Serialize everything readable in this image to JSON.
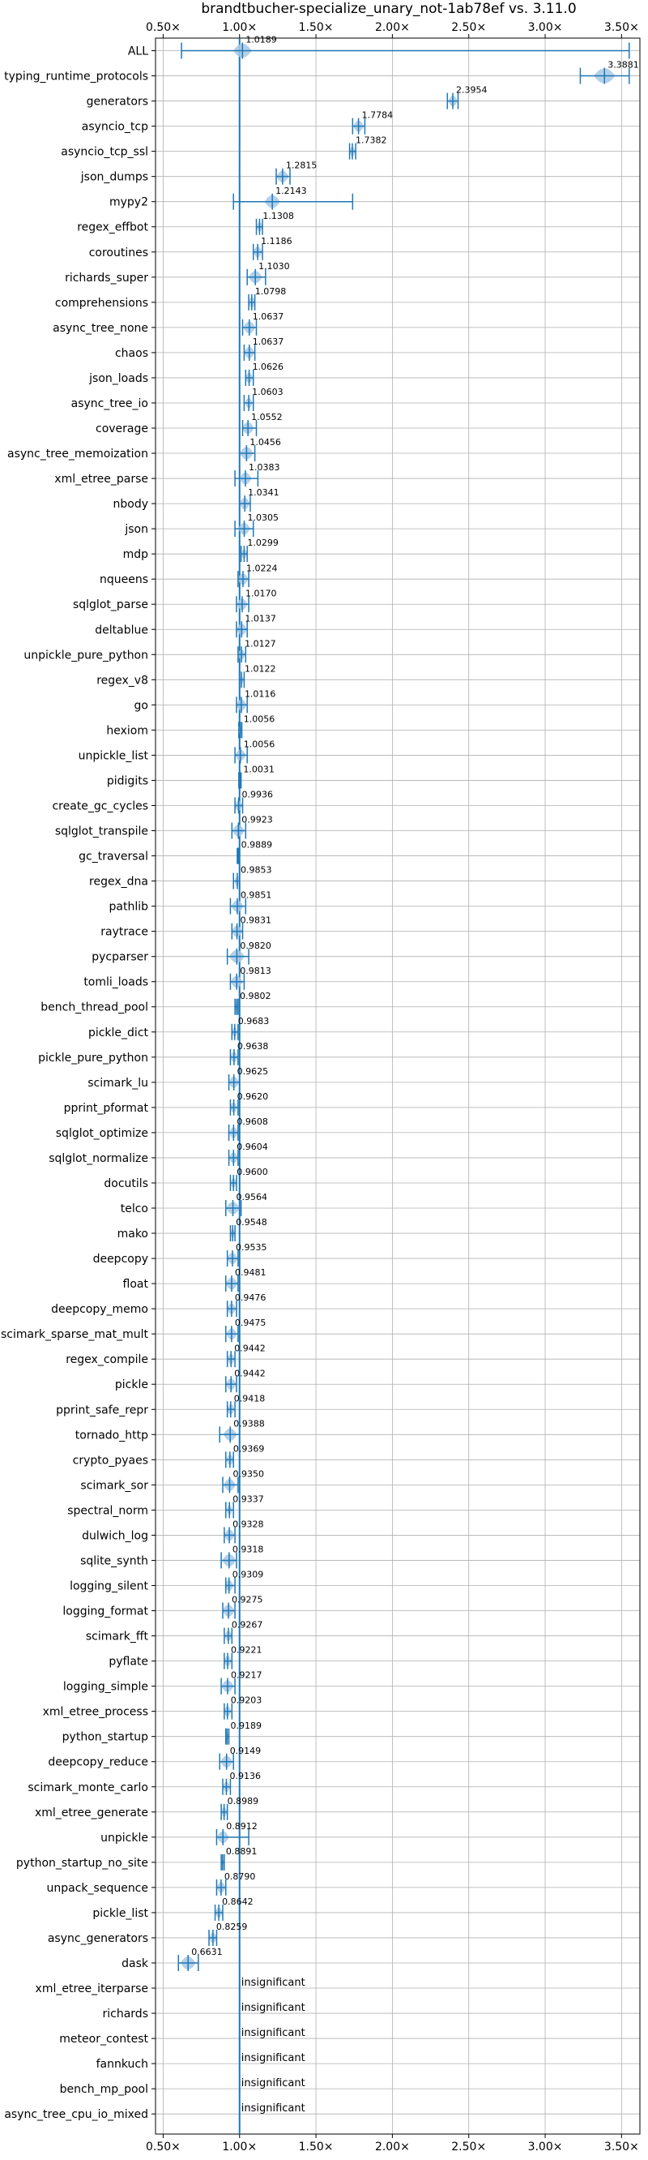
{
  "chart_data": {
    "type": "violin",
    "title": "brandtbucher-specialize_unary_not-1ab78ef vs. 3.11.0",
    "xlabel": "",
    "ylabel": "",
    "xlim": [
      0.45,
      3.62
    ],
    "x_ticks": [
      {
        "value": 0.5,
        "label": "0.50×"
      },
      {
        "value": 1.0,
        "label": "1.00×"
      },
      {
        "value": 1.5,
        "label": "1.50×"
      },
      {
        "value": 2.0,
        "label": "2.00×"
      },
      {
        "value": 2.5,
        "label": "2.50×"
      },
      {
        "value": 3.0,
        "label": "3.00×"
      },
      {
        "value": 3.5,
        "label": "3.50×"
      }
    ],
    "reference_line": 1.0,
    "grid": true,
    "legend": "none",
    "colors": {
      "line": "#1f77b4",
      "fill": "#a6c8e6",
      "grid": "#b0b0b0"
    },
    "benchmarks": [
      {
        "name": "ALL",
        "value": 1.0189,
        "label": "1.0189",
        "min": 0.62,
        "max": 3.55,
        "spread": 0.06
      },
      {
        "name": "typing_runtime_protocols",
        "value": 3.3881,
        "label": "3.3881",
        "min": 3.23,
        "max": 3.55,
        "spread": 0.07
      },
      {
        "name": "generators",
        "value": 2.3954,
        "label": "2.3954",
        "min": 2.36,
        "max": 2.43,
        "spread": 0.03
      },
      {
        "name": "asyncio_tcp",
        "value": 1.7784,
        "label": "1.7784",
        "min": 1.74,
        "max": 1.82,
        "spread": 0.035
      },
      {
        "name": "asyncio_tcp_ssl",
        "value": 1.7382,
        "label": "1.7382",
        "min": 1.72,
        "max": 1.76,
        "spread": 0.02
      },
      {
        "name": "json_dumps",
        "value": 1.2815,
        "label": "1.2815",
        "min": 1.24,
        "max": 1.33,
        "spread": 0.04
      },
      {
        "name": "mypy2",
        "value": 1.2143,
        "label": "1.2143",
        "min": 0.96,
        "max": 1.74,
        "spread": 0.05
      },
      {
        "name": "regex_effbot",
        "value": 1.1308,
        "label": "1.1308",
        "min": 1.11,
        "max": 1.15,
        "spread": 0.02
      },
      {
        "name": "coroutines",
        "value": 1.1186,
        "label": "1.1186",
        "min": 1.09,
        "max": 1.15,
        "spread": 0.03
      },
      {
        "name": "richards_super",
        "value": 1.103,
        "label": "1.1030",
        "min": 1.05,
        "max": 1.17,
        "spread": 0.045
      },
      {
        "name": "comprehensions",
        "value": 1.0798,
        "label": "1.0798",
        "min": 1.06,
        "max": 1.1,
        "spread": 0.025
      },
      {
        "name": "async_tree_none",
        "value": 1.0637,
        "label": "1.0637",
        "min": 1.02,
        "max": 1.11,
        "spread": 0.04
      },
      {
        "name": "chaos",
        "value": 1.0637,
        "label": "1.0637",
        "min": 1.03,
        "max": 1.1,
        "spread": 0.035
      },
      {
        "name": "json_loads",
        "value": 1.0626,
        "label": "1.0626",
        "min": 1.04,
        "max": 1.09,
        "spread": 0.025
      },
      {
        "name": "async_tree_io",
        "value": 1.0603,
        "label": "1.0603",
        "min": 1.03,
        "max": 1.09,
        "spread": 0.025
      },
      {
        "name": "coverage",
        "value": 1.0552,
        "label": "1.0552",
        "min": 1.02,
        "max": 1.11,
        "spread": 0.04
      },
      {
        "name": "async_tree_memoization",
        "value": 1.0456,
        "label": "1.0456",
        "min": 1.0,
        "max": 1.1,
        "spread": 0.045
      },
      {
        "name": "xml_etree_parse",
        "value": 1.0383,
        "label": "1.0383",
        "min": 0.97,
        "max": 1.12,
        "spread": 0.04
      },
      {
        "name": "nbody",
        "value": 1.0341,
        "label": "1.0341",
        "min": 1.0,
        "max": 1.07,
        "spread": 0.035
      },
      {
        "name": "json",
        "value": 1.0305,
        "label": "1.0305",
        "min": 0.97,
        "max": 1.09,
        "spread": 0.04
      },
      {
        "name": "mdp",
        "value": 1.0299,
        "label": "1.0299",
        "min": 1.01,
        "max": 1.05,
        "spread": 0.02
      },
      {
        "name": "nqueens",
        "value": 1.0224,
        "label": "1.0224",
        "min": 0.99,
        "max": 1.06,
        "spread": 0.035
      },
      {
        "name": "sqlglot_parse",
        "value": 1.017,
        "label": "1.0170",
        "min": 0.98,
        "max": 1.06,
        "spread": 0.035
      },
      {
        "name": "deltablue",
        "value": 1.0137,
        "label": "1.0137",
        "min": 0.98,
        "max": 1.05,
        "spread": 0.035
      },
      {
        "name": "unpickle_pure_python",
        "value": 1.0127,
        "label": "1.0127",
        "min": 0.99,
        "max": 1.04,
        "spread": 0.025
      },
      {
        "name": "regex_v8",
        "value": 1.0122,
        "label": "1.0122",
        "min": 1.0,
        "max": 1.03,
        "spread": 0.015
      },
      {
        "name": "go",
        "value": 1.0116,
        "label": "1.0116",
        "min": 0.98,
        "max": 1.05,
        "spread": 0.035
      },
      {
        "name": "hexiom",
        "value": 1.0056,
        "label": "1.0056",
        "min": 0.995,
        "max": 1.015,
        "spread": 0.012
      },
      {
        "name": "unpickle_list",
        "value": 1.0056,
        "label": "1.0056",
        "min": 0.97,
        "max": 1.05,
        "spread": 0.035
      },
      {
        "name": "pidigits",
        "value": 1.0031,
        "label": "1.0031",
        "min": 0.995,
        "max": 1.01,
        "spread": 0.008
      },
      {
        "name": "create_gc_cycles",
        "value": 0.9936,
        "label": "0.9936",
        "min": 0.97,
        "max": 1.02,
        "spread": 0.025
      },
      {
        "name": "sqlglot_transpile",
        "value": 0.9923,
        "label": "0.9923",
        "min": 0.95,
        "max": 1.04,
        "spread": 0.04
      },
      {
        "name": "gc_traversal",
        "value": 0.9889,
        "label": "0.9889",
        "min": 0.985,
        "max": 0.995,
        "spread": 0.006
      },
      {
        "name": "regex_dna",
        "value": 0.9853,
        "label": "0.9853",
        "min": 0.96,
        "max": 1.0,
        "spread": 0.02
      },
      {
        "name": "pathlib",
        "value": 0.9851,
        "label": "0.9851",
        "min": 0.94,
        "max": 1.04,
        "spread": 0.04
      },
      {
        "name": "raytrace",
        "value": 0.9831,
        "label": "0.9831",
        "min": 0.95,
        "max": 1.02,
        "spread": 0.035
      },
      {
        "name": "pycparser",
        "value": 0.982,
        "label": "0.9820",
        "min": 0.92,
        "max": 1.06,
        "spread": 0.05
      },
      {
        "name": "tomli_loads",
        "value": 0.9813,
        "label": "0.9813",
        "min": 0.94,
        "max": 1.03,
        "spread": 0.04
      },
      {
        "name": "bench_thread_pool",
        "value": 0.9802,
        "label": "0.9802",
        "min": 0.97,
        "max": 0.99,
        "spread": 0.01
      },
      {
        "name": "pickle_dict",
        "value": 0.9683,
        "label": "0.9683",
        "min": 0.95,
        "max": 0.99,
        "spread": 0.02
      },
      {
        "name": "pickle_pure_python",
        "value": 0.9638,
        "label": "0.9638",
        "min": 0.94,
        "max": 0.99,
        "spread": 0.025
      },
      {
        "name": "scimark_lu",
        "value": 0.9625,
        "label": "0.9625",
        "min": 0.93,
        "max": 1.0,
        "spread": 0.035
      },
      {
        "name": "pprint_pformat",
        "value": 0.962,
        "label": "0.9620",
        "min": 0.94,
        "max": 0.99,
        "spread": 0.025
      },
      {
        "name": "sqlglot_optimize",
        "value": 0.9608,
        "label": "0.9608",
        "min": 0.93,
        "max": 0.99,
        "spread": 0.03
      },
      {
        "name": "sqlglot_normalize",
        "value": 0.9604,
        "label": "0.9604",
        "min": 0.93,
        "max": 0.99,
        "spread": 0.03
      },
      {
        "name": "docutils",
        "value": 0.96,
        "label": "0.9600",
        "min": 0.94,
        "max": 0.98,
        "spread": 0.02
      },
      {
        "name": "telco",
        "value": 0.9564,
        "label": "0.9564",
        "min": 0.91,
        "max": 1.01,
        "spread": 0.045
      },
      {
        "name": "mako",
        "value": 0.9548,
        "label": "0.9548",
        "min": 0.94,
        "max": 0.97,
        "spread": 0.015
      },
      {
        "name": "deepcopy",
        "value": 0.9535,
        "label": "0.9535",
        "min": 0.92,
        "max": 0.99,
        "spread": 0.035
      },
      {
        "name": "float",
        "value": 0.9481,
        "label": "0.9481",
        "min": 0.91,
        "max": 0.99,
        "spread": 0.04
      },
      {
        "name": "deepcopy_memo",
        "value": 0.9476,
        "label": "0.9476",
        "min": 0.92,
        "max": 0.98,
        "spread": 0.03
      },
      {
        "name": "scimark_sparse_mat_mult",
        "value": 0.9475,
        "label": "0.9475",
        "min": 0.91,
        "max": 0.99,
        "spread": 0.035
      },
      {
        "name": "regex_compile",
        "value": 0.9442,
        "label": "0.9442",
        "min": 0.92,
        "max": 0.97,
        "spread": 0.025
      },
      {
        "name": "pickle",
        "value": 0.9442,
        "label": "0.9442",
        "min": 0.91,
        "max": 0.98,
        "spread": 0.035
      },
      {
        "name": "pprint_safe_repr",
        "value": 0.9418,
        "label": "0.9418",
        "min": 0.92,
        "max": 0.97,
        "spread": 0.025
      },
      {
        "name": "tornado_http",
        "value": 0.9388,
        "label": "0.9388",
        "min": 0.87,
        "max": 1.0,
        "spread": 0.045
      },
      {
        "name": "crypto_pyaes",
        "value": 0.9369,
        "label": "0.9369",
        "min": 0.91,
        "max": 0.96,
        "spread": 0.025
      },
      {
        "name": "scimark_sor",
        "value": 0.935,
        "label": "0.9350",
        "min": 0.89,
        "max": 0.99,
        "spread": 0.04
      },
      {
        "name": "spectral_norm",
        "value": 0.9337,
        "label": "0.9337",
        "min": 0.91,
        "max": 0.96,
        "spread": 0.02
      },
      {
        "name": "dulwich_log",
        "value": 0.9328,
        "label": "0.9328",
        "min": 0.9,
        "max": 0.97,
        "spread": 0.035
      },
      {
        "name": "sqlite_synth",
        "value": 0.9318,
        "label": "0.9318",
        "min": 0.88,
        "max": 0.98,
        "spread": 0.045
      },
      {
        "name": "logging_silent",
        "value": 0.9309,
        "label": "0.9309",
        "min": 0.91,
        "max": 0.97,
        "spread": 0.03
      },
      {
        "name": "logging_format",
        "value": 0.9275,
        "label": "0.9275",
        "min": 0.89,
        "max": 0.97,
        "spread": 0.04
      },
      {
        "name": "scimark_fft",
        "value": 0.9267,
        "label": "0.9267",
        "min": 0.9,
        "max": 0.95,
        "spread": 0.025
      },
      {
        "name": "pyflate",
        "value": 0.9221,
        "label": "0.9221",
        "min": 0.9,
        "max": 0.95,
        "spread": 0.025
      },
      {
        "name": "logging_simple",
        "value": 0.9217,
        "label": "0.9217",
        "min": 0.88,
        "max": 0.97,
        "spread": 0.04
      },
      {
        "name": "xml_etree_process",
        "value": 0.9203,
        "label": "0.9203",
        "min": 0.9,
        "max": 0.95,
        "spread": 0.025
      },
      {
        "name": "python_startup",
        "value": 0.9189,
        "label": "0.9189",
        "min": 0.91,
        "max": 0.93,
        "spread": 0.01
      },
      {
        "name": "deepcopy_reduce",
        "value": 0.9149,
        "label": "0.9149",
        "min": 0.87,
        "max": 0.96,
        "spread": 0.04
      },
      {
        "name": "scimark_monte_carlo",
        "value": 0.9136,
        "label": "0.9136",
        "min": 0.89,
        "max": 0.94,
        "spread": 0.025
      },
      {
        "name": "xml_etree_generate",
        "value": 0.8989,
        "label": "0.8989",
        "min": 0.88,
        "max": 0.92,
        "spread": 0.02
      },
      {
        "name": "unpickle",
        "value": 0.8912,
        "label": "0.8912",
        "min": 0.85,
        "max": 1.06,
        "spread": 0.04
      },
      {
        "name": "python_startup_no_site",
        "value": 0.8891,
        "label": "0.8891",
        "min": 0.88,
        "max": 0.9,
        "spread": 0.008
      },
      {
        "name": "unpack_sequence",
        "value": 0.879,
        "label": "0.8790",
        "min": 0.85,
        "max": 0.91,
        "spread": 0.03
      },
      {
        "name": "pickle_list",
        "value": 0.8642,
        "label": "0.8642",
        "min": 0.84,
        "max": 0.89,
        "spread": 0.025
      },
      {
        "name": "async_generators",
        "value": 0.8259,
        "label": "0.8259",
        "min": 0.8,
        "max": 0.85,
        "spread": 0.025
      },
      {
        "name": "dask",
        "value": 0.6631,
        "label": "0.6631",
        "min": 0.6,
        "max": 0.73,
        "spread": 0.05
      },
      {
        "name": "xml_etree_iterparse",
        "value": null,
        "label": "insignificant"
      },
      {
        "name": "richards",
        "value": null,
        "label": "insignificant"
      },
      {
        "name": "meteor_contest",
        "value": null,
        "label": "insignificant"
      },
      {
        "name": "fannkuch",
        "value": null,
        "label": "insignificant"
      },
      {
        "name": "bench_mp_pool",
        "value": null,
        "label": "insignificant"
      },
      {
        "name": "async_tree_cpu_io_mixed",
        "value": null,
        "label": "insignificant"
      }
    ]
  }
}
